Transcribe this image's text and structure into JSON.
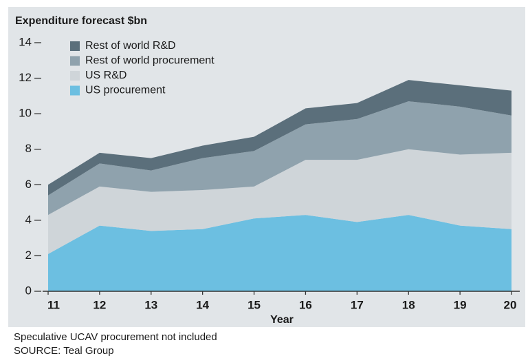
{
  "chart_data": {
    "type": "stacked-area",
    "title": "Expenditure forecast $bn",
    "x_label": "Year",
    "notes": [
      "Speculative UCAV procurement not included",
      "SOURCE: Teal Group"
    ],
    "categories": [
      "11",
      "12",
      "13",
      "14",
      "15",
      "16",
      "17",
      "18",
      "19",
      "20"
    ],
    "series": [
      {
        "name": "US procurement",
        "color": "#6cbfe1",
        "values": [
          2.1,
          3.7,
          3.4,
          3.5,
          4.1,
          4.3,
          3.9,
          4.3,
          3.7,
          3.5
        ]
      },
      {
        "name": "US R&D",
        "color": "#cfd5d9",
        "values": [
          2.2,
          2.2,
          2.2,
          2.2,
          1.8,
          3.1,
          3.5,
          3.7,
          4.0,
          4.3
        ]
      },
      {
        "name": "Rest of world procurement",
        "color": "#8fa2ad",
        "values": [
          1.1,
          1.3,
          1.2,
          1.8,
          2.0,
          2.0,
          2.3,
          2.7,
          2.7,
          2.1
        ]
      },
      {
        "name": "Rest of world R&D",
        "color": "#5b6f7b",
        "values": [
          0.6,
          0.6,
          0.7,
          0.7,
          0.8,
          0.9,
          0.9,
          1.2,
          1.2,
          1.4
        ]
      }
    ],
    "ylim": [
      0,
      14
    ],
    "yticks": [
      0,
      2,
      4,
      6,
      8,
      10,
      12,
      14
    ]
  }
}
